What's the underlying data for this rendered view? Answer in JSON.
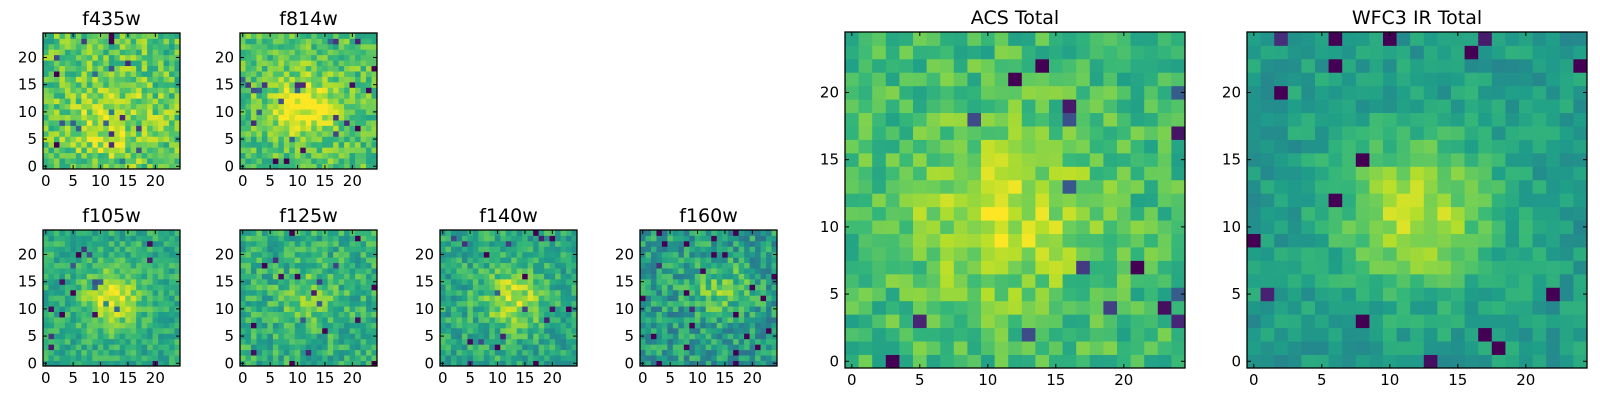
{
  "figure": {
    "colormap": "viridis",
    "colors": {
      "low": "#440154",
      "mid": "#21918c",
      "high": "#fde725",
      "frame": "#000000",
      "background": "#ffffff"
    }
  },
  "chart_data": [
    {
      "id": "f435w",
      "type": "heatmap",
      "title": "f435w",
      "grid_size": 25,
      "xlim": [
        0,
        24
      ],
      "ylim": [
        0,
        24
      ],
      "x_ticks": [
        0,
        5,
        10,
        15,
        20
      ],
      "y_ticks": [
        0,
        5,
        10,
        15,
        20
      ],
      "x_tick_labels": [
        "0",
        "5",
        "10",
        "15",
        "20"
      ],
      "y_tick_labels": [
        "0",
        "5",
        "10",
        "15",
        "20"
      ],
      "source_center": [
        12,
        8
      ],
      "source_radius": 6,
      "source_amplitude": 0.15,
      "noise": 0.35,
      "base": 0.72,
      "seed": 11
    },
    {
      "id": "f814w",
      "type": "heatmap",
      "title": "f814w",
      "grid_size": 25,
      "xlim": [
        0,
        24
      ],
      "ylim": [
        0,
        24
      ],
      "x_ticks": [
        0,
        5,
        10,
        15,
        20
      ],
      "y_ticks": [
        0,
        5,
        10,
        15,
        20
      ],
      "x_tick_labels": [
        "0",
        "5",
        "10",
        "15",
        "20"
      ],
      "y_tick_labels": [
        "0",
        "5",
        "10",
        "15",
        "20"
      ],
      "source_center": [
        11,
        11
      ],
      "source_radius": 4,
      "source_amplitude": 0.3,
      "noise": 0.3,
      "base": 0.72,
      "seed": 23
    },
    {
      "id": "f105w",
      "type": "heatmap",
      "title": "f105w",
      "grid_size": 25,
      "xlim": [
        0,
        24
      ],
      "ylim": [
        0,
        24
      ],
      "x_ticks": [
        0,
        5,
        10,
        15,
        20
      ],
      "y_ticks": [
        0,
        5,
        10,
        15,
        20
      ],
      "x_tick_labels": [
        "0",
        "5",
        "10",
        "15",
        "20"
      ],
      "y_tick_labels": [
        "0",
        "5",
        "10",
        "15",
        "20"
      ],
      "source_center": [
        12,
        12
      ],
      "source_radius": 3.5,
      "source_amplitude": 0.35,
      "noise": 0.25,
      "base": 0.62,
      "seed": 37
    },
    {
      "id": "f125w",
      "type": "heatmap",
      "title": "f125w",
      "grid_size": 25,
      "xlim": [
        0,
        24
      ],
      "ylim": [
        0,
        24
      ],
      "x_ticks": [
        0,
        5,
        10,
        15,
        20
      ],
      "y_ticks": [
        0,
        5,
        10,
        15,
        20
      ],
      "x_tick_labels": [
        "0",
        "5",
        "10",
        "15",
        "20"
      ],
      "y_tick_labels": [
        "0",
        "5",
        "10",
        "15",
        "20"
      ],
      "source_center": [
        12,
        12
      ],
      "source_radius": 3.5,
      "source_amplitude": 0.15,
      "noise": 0.3,
      "base": 0.63,
      "seed": 41
    },
    {
      "id": "f140w",
      "type": "heatmap",
      "title": "f140w",
      "grid_size": 25,
      "xlim": [
        0,
        24
      ],
      "ylim": [
        0,
        24
      ],
      "x_ticks": [
        0,
        5,
        10,
        15,
        20
      ],
      "y_ticks": [
        0,
        5,
        10,
        15,
        20
      ],
      "x_tick_labels": [
        "0",
        "5",
        "10",
        "15",
        "20"
      ],
      "y_tick_labels": [
        "0",
        "5",
        "10",
        "15",
        "20"
      ],
      "source_center": [
        13,
        12
      ],
      "source_radius": 4,
      "source_amplitude": 0.3,
      "noise": 0.3,
      "base": 0.6,
      "seed": 53
    },
    {
      "id": "f160w",
      "type": "heatmap",
      "title": "f160w",
      "grid_size": 25,
      "xlim": [
        0,
        24
      ],
      "ylim": [
        0,
        24
      ],
      "x_ticks": [
        0,
        5,
        10,
        15,
        20
      ],
      "y_ticks": [
        0,
        5,
        10,
        15,
        20
      ],
      "x_tick_labels": [
        "0",
        "5",
        "10",
        "15",
        "20"
      ],
      "y_tick_labels": [
        "0",
        "5",
        "10",
        "15",
        "20"
      ],
      "source_center": [
        14,
        14
      ],
      "source_radius": 4,
      "source_amplitude": 0.2,
      "noise": 0.35,
      "base": 0.55,
      "seed": 67
    },
    {
      "id": "acs-total",
      "type": "heatmap",
      "title": "ACS Total",
      "grid_size": 25,
      "xlim": [
        0,
        24
      ],
      "ylim": [
        0,
        24
      ],
      "x_ticks": [
        0,
        5,
        10,
        15,
        20
      ],
      "y_ticks": [
        0,
        5,
        10,
        15,
        20
      ],
      "x_tick_labels": [
        "0",
        "5",
        "10",
        "15",
        "20"
      ],
      "y_tick_labels": [
        "0",
        "5",
        "10",
        "15",
        "20"
      ],
      "source_center": [
        11,
        11
      ],
      "source_radius": 4.5,
      "source_amplitude": 0.25,
      "noise": 0.25,
      "base": 0.68,
      "seed": 79
    },
    {
      "id": "wfc3-ir-total",
      "type": "heatmap",
      "title": "WFC3 IR Total",
      "grid_size": 25,
      "xlim": [
        0,
        24
      ],
      "ylim": [
        0,
        24
      ],
      "x_ticks": [
        0,
        5,
        10,
        15,
        20
      ],
      "y_ticks": [
        0,
        5,
        10,
        15,
        20
      ],
      "x_tick_labels": [
        "0",
        "5",
        "10",
        "15",
        "20"
      ],
      "y_tick_labels": [
        "0",
        "5",
        "10",
        "15",
        "20"
      ],
      "source_center": [
        12,
        11
      ],
      "source_radius": 4,
      "source_amplitude": 0.35,
      "noise": 0.18,
      "base": 0.55,
      "seed": 97
    }
  ]
}
